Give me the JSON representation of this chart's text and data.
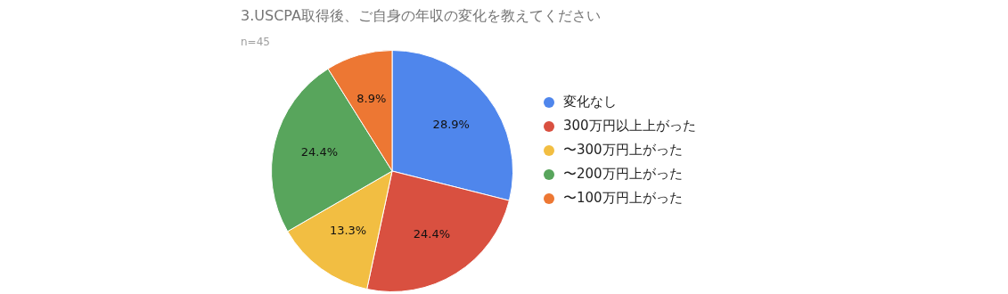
{
  "chart_data": {
    "type": "pie",
    "title": "3.USCPA取得後、ご自身の年収の変化を教えてください",
    "subtitle": "n=45",
    "categories": [
      "変化なし",
      "300万円以上上がった",
      "〜300万円上がった",
      "〜200万円上がった",
      "〜100万円上がった"
    ],
    "values": [
      28.9,
      24.4,
      13.3,
      24.4,
      8.9
    ],
    "colors": [
      "#4f86ec",
      "#d95040",
      "#f2be42",
      "#58a55c",
      "#ed7733"
    ],
    "value_labels": [
      "28.9%",
      "24.4%",
      "13.3%",
      "24.4%",
      "8.9%"
    ],
    "legend": "right"
  }
}
